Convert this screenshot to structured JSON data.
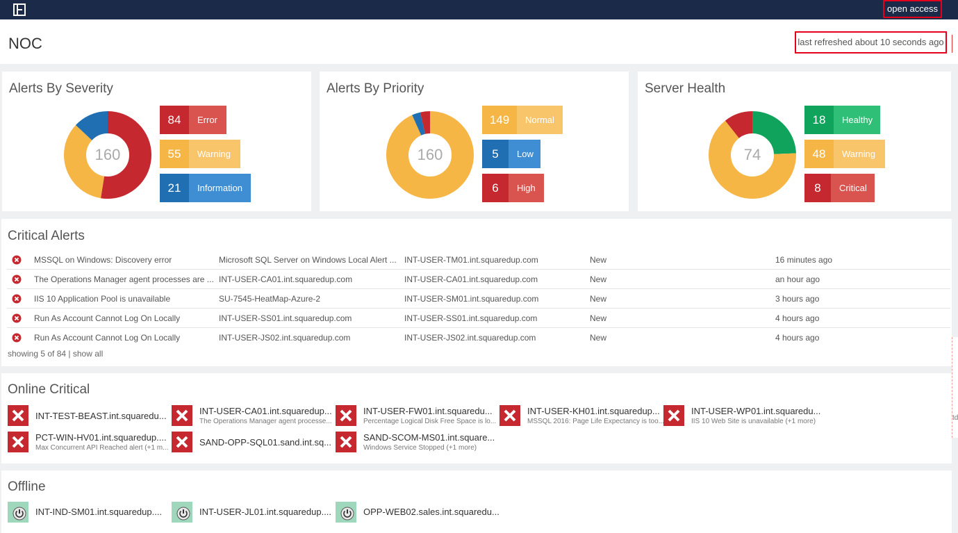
{
  "header": {
    "open_access": "open access",
    "page_title": "NOC",
    "refreshed": "last refreshed about 10 seconds ago"
  },
  "severity": {
    "title": "Alerts By Severity",
    "total": "160",
    "stats": [
      {
        "value": "84",
        "label": "Error",
        "color_dark": "#c5282f",
        "color_light": "#d9534f"
      },
      {
        "value": "55",
        "label": "Warning",
        "color_dark": "#f6b645",
        "color_light": "#f9c56a"
      },
      {
        "value": "21",
        "label": "Information",
        "color_dark": "#1f6fb2",
        "color_light": "#3f8ed3"
      }
    ]
  },
  "priority": {
    "title": "Alerts By Priority",
    "total": "160",
    "stats": [
      {
        "value": "149",
        "label": "Normal",
        "color_dark": "#f6b645",
        "color_light": "#f9c56a"
      },
      {
        "value": "5",
        "label": "Low",
        "color_dark": "#1f6fb2",
        "color_light": "#3f8ed3"
      },
      {
        "value": "6",
        "label": "High",
        "color_dark": "#c5282f",
        "color_light": "#d9534f"
      }
    ]
  },
  "health": {
    "title": "Server Health",
    "total": "74",
    "stats": [
      {
        "value": "18",
        "label": "Healthy",
        "color_dark": "#0fa35b",
        "color_light": "#2fbf77"
      },
      {
        "value": "48",
        "label": "Warning",
        "color_dark": "#f6b645",
        "color_light": "#f9c56a"
      },
      {
        "value": "8",
        "label": "Critical",
        "color_dark": "#c5282f",
        "color_light": "#d9534f"
      }
    ]
  },
  "critical_alerts": {
    "title": "Critical Alerts",
    "rows": [
      {
        "name": "MSSQL on Windows: Discovery error",
        "source": "Microsoft SQL Server on Windows Local Alert ...",
        "server": "INT-USER-TM01.int.squaredup.com",
        "status": "New",
        "age": "16 minutes ago"
      },
      {
        "name": "The Operations Manager agent processes are ...",
        "source": "INT-USER-CA01.int.squaredup.com",
        "server": "INT-USER-CA01.int.squaredup.com",
        "status": "New",
        "age": "an hour ago"
      },
      {
        "name": "IIS 10 Application Pool is unavailable",
        "source": "SU-7545-HeatMap-Azure-2",
        "server": "INT-USER-SM01.int.squaredup.com",
        "status": "New",
        "age": "3 hours ago"
      },
      {
        "name": "Run As Account Cannot Log On Locally",
        "source": "INT-USER-SS01.int.squaredup.com",
        "server": "INT-USER-SS01.int.squaredup.com",
        "status": "New",
        "age": "4 hours ago"
      },
      {
        "name": "Run As Account Cannot Log On Locally",
        "source": "INT-USER-JS02.int.squaredup.com",
        "server": "INT-USER-JS02.int.squaredup.com",
        "status": "New",
        "age": "4 hours ago"
      }
    ],
    "showing": "showing 5 of 84",
    "separator": "|",
    "show_all": "show all"
  },
  "online_critical": {
    "title": "Online Critical",
    "tiles": [
      {
        "name": "INT-TEST-BEAST.int.squaredu...",
        "sub": ""
      },
      {
        "name": "INT-USER-CA01.int.squaredup...",
        "sub": "The Operations Manager agent processe..."
      },
      {
        "name": "INT-USER-FW01.int.squaredu...",
        "sub": "Percentage Logical Disk Free Space is lo..."
      },
      {
        "name": "INT-USER-KH01.int.squaredup...",
        "sub": "MSSQL 2016: Page Life Expectancy is too..."
      },
      {
        "name": "INT-USER-WP01.int.squaredu...",
        "sub": "IIS 10 Web Site is unavailable (+1 more)"
      },
      {
        "name": "PCT-WIN-HV01.int.squaredup....",
        "sub": "Max Concurrent API Reached alert (+1 m..."
      },
      {
        "name": "SAND-OPP-SQL01.sand.int.sq...",
        "sub": ""
      },
      {
        "name": "SAND-SCOM-MS01.int.square...",
        "sub": "Windows Service Stopped (+1 more)"
      }
    ]
  },
  "offline": {
    "title": "Offline",
    "tiles": [
      {
        "name": "INT-IND-SM01.int.squaredup...."
      },
      {
        "name": "INT-USER-JL01.int.squaredup...."
      },
      {
        "name": "OPP-WEB02.sales.int.squaredu..."
      }
    ]
  },
  "edge_text": "td"
}
